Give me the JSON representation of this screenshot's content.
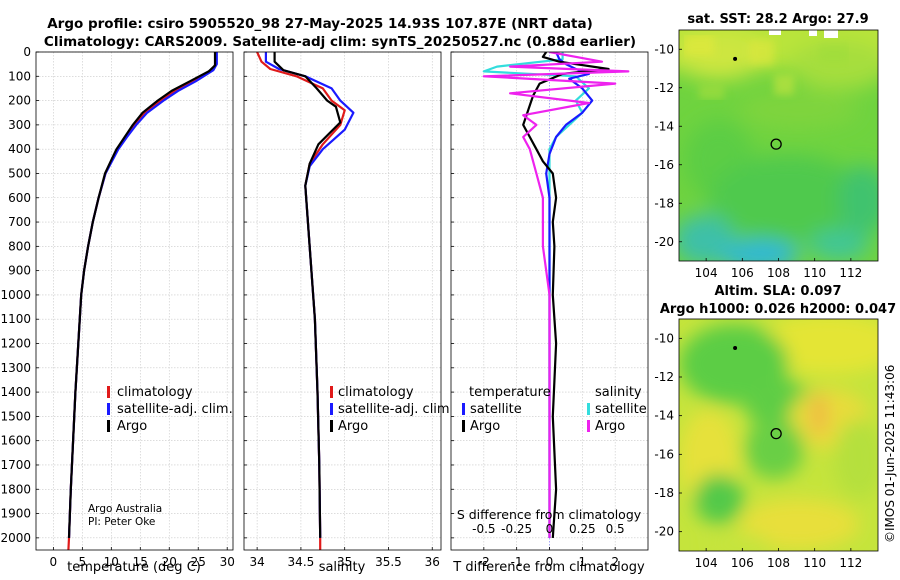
{
  "header": {
    "title_line1": "Argo profile: csiro 5905520_98 27-May-2025 14.93S 107.87E (NRT data)",
    "title_line2": "Climatology: CARS2009. Satellite-adj clim: synTS_20250527.nc (0.88d earlier)"
  },
  "colors": {
    "climatology": "#e01a1a",
    "satellite": "#1a1aff",
    "argo": "#000000",
    "sat_salinity": "#33dddd",
    "argo_salinity": "#ee22ee"
  },
  "chart_data": [
    {
      "type": "line",
      "name": "temperature",
      "xlabel": "temperature (deg C)",
      "xlim": [
        -3,
        31
      ],
      "ylim": [
        0,
        2050
      ],
      "xticks": [
        0,
        5,
        10,
        15,
        20,
        25,
        30
      ],
      "yticks": [
        0,
        100,
        200,
        300,
        400,
        500,
        600,
        700,
        800,
        900,
        1000,
        1100,
        1200,
        1300,
        1400,
        1500,
        1600,
        1700,
        1800,
        1900,
        2000
      ],
      "legend": [
        "climatology",
        "satellite-adj. clim.",
        "Argo"
      ],
      "annotation": [
        "Argo Australia",
        "PI: Peter Oke"
      ],
      "series": [
        {
          "name": "climatology",
          "points": [
            [
              28.0,
              0
            ],
            [
              28.0,
              50
            ],
            [
              27.3,
              75
            ],
            [
              24.2,
              120
            ],
            [
              21.0,
              160
            ],
            [
              18.5,
              200
            ],
            [
              15.8,
              250
            ],
            [
              14.0,
              300
            ],
            [
              12.5,
              350
            ],
            [
              11.0,
              400
            ],
            [
              10.0,
              450
            ],
            [
              9.0,
              500
            ],
            [
              7.8,
              600
            ],
            [
              6.8,
              700
            ],
            [
              6.0,
              800
            ],
            [
              5.3,
              900
            ],
            [
              4.8,
              1000
            ],
            [
              4.3,
              1200
            ],
            [
              3.8,
              1400
            ],
            [
              3.4,
              1600
            ],
            [
              3.0,
              1800
            ],
            [
              2.7,
              2000
            ],
            [
              2.6,
              2050
            ]
          ]
        },
        {
          "name": "satellite",
          "points": [
            [
              28.2,
              0
            ],
            [
              28.2,
              50
            ],
            [
              27.6,
              75
            ],
            [
              24.6,
              120
            ],
            [
              21.5,
              160
            ],
            [
              19.0,
              200
            ],
            [
              16.2,
              250
            ],
            [
              14.3,
              300
            ],
            [
              12.7,
              350
            ],
            [
              11.2,
              400
            ],
            [
              10.1,
              450
            ],
            [
              9.0,
              500
            ],
            [
              7.8,
              600
            ],
            [
              6.8,
              700
            ],
            [
              6.0,
              800
            ],
            [
              5.3,
              900
            ],
            [
              4.8,
              1000
            ],
            [
              4.3,
              1200
            ],
            [
              3.8,
              1400
            ],
            [
              3.4,
              1600
            ],
            [
              3.0,
              1800
            ],
            [
              2.7,
              2000
            ]
          ]
        },
        {
          "name": "argo",
          "points": [
            [
              27.9,
              0
            ],
            [
              27.9,
              55
            ],
            [
              26.8,
              80
            ],
            [
              23.6,
              120
            ],
            [
              20.4,
              160
            ],
            [
              18.0,
              200
            ],
            [
              15.4,
              250
            ],
            [
              13.7,
              300
            ],
            [
              12.3,
              350
            ],
            [
              10.9,
              400
            ],
            [
              9.9,
              450
            ],
            [
              8.9,
              500
            ],
            [
              7.8,
              600
            ],
            [
              6.8,
              700
            ],
            [
              6.0,
              800
            ],
            [
              5.3,
              900
            ],
            [
              4.8,
              1000
            ],
            [
              4.3,
              1200
            ],
            [
              3.8,
              1400
            ],
            [
              3.4,
              1600
            ],
            [
              3.0,
              1800
            ],
            [
              2.7,
              2000
            ]
          ]
        }
      ]
    },
    {
      "type": "line",
      "name": "salinity",
      "xlabel": "salinity",
      "xlim": [
        33.85,
        36.1
      ],
      "ylim": [
        0,
        2050
      ],
      "xticks": [
        34,
        34.5,
        35,
        35.5,
        36
      ],
      "legend": [
        "climatology",
        "satellite-adj. clim.",
        "Argo"
      ],
      "series": [
        {
          "name": "climatology",
          "points": [
            [
              34.0,
              0
            ],
            [
              34.05,
              40
            ],
            [
              34.15,
              70
            ],
            [
              34.45,
              100
            ],
            [
              34.75,
              150
            ],
            [
              34.85,
              200
            ],
            [
              35.0,
              240
            ],
            [
              34.95,
              300
            ],
            [
              34.75,
              380
            ],
            [
              34.6,
              460
            ],
            [
              34.55,
              550
            ],
            [
              34.58,
              700
            ],
            [
              34.62,
              900
            ],
            [
              34.66,
              1100
            ],
            [
              34.69,
              1400
            ],
            [
              34.71,
              1700
            ],
            [
              34.72,
              2000
            ],
            [
              34.72,
              2050
            ]
          ]
        },
        {
          "name": "satellite",
          "points": [
            [
              34.1,
              0
            ],
            [
              34.1,
              40
            ],
            [
              34.25,
              70
            ],
            [
              34.55,
              100
            ],
            [
              34.85,
              150
            ],
            [
              34.95,
              200
            ],
            [
              35.1,
              250
            ],
            [
              35.0,
              320
            ],
            [
              34.75,
              400
            ],
            [
              34.6,
              470
            ],
            [
              34.55,
              550
            ],
            [
              34.58,
              700
            ],
            [
              34.62,
              900
            ],
            [
              34.66,
              1100
            ],
            [
              34.69,
              1400
            ],
            [
              34.71,
              1700
            ],
            [
              34.72,
              2000
            ]
          ]
        },
        {
          "name": "argo",
          "points": [
            [
              34.2,
              0
            ],
            [
              34.2,
              40
            ],
            [
              34.3,
              75
            ],
            [
              34.55,
              100
            ],
            [
              34.68,
              150
            ],
            [
              34.8,
              200
            ],
            [
              34.9,
              225
            ],
            [
              34.95,
              290
            ],
            [
              34.7,
              380
            ],
            [
              34.6,
              460
            ],
            [
              34.55,
              550
            ],
            [
              34.58,
              700
            ],
            [
              34.62,
              900
            ],
            [
              34.66,
              1100
            ],
            [
              34.69,
              1400
            ],
            [
              34.71,
              1700
            ],
            [
              34.72,
              2000
            ]
          ]
        }
      ]
    },
    {
      "type": "line",
      "name": "differences",
      "xlabel": "T difference from climatology",
      "xlabel_top": "S difference from climatology",
      "xlim": [
        -3,
        3
      ],
      "ylim": [
        0,
        2050
      ],
      "xticks": [
        -2,
        -1,
        0,
        1,
        2
      ],
      "xticks_top": [
        -0.5,
        -0.25,
        0,
        0.25,
        0.5
      ],
      "legend_temperature": [
        "temperature",
        "satellite",
        "Argo"
      ],
      "legend_salinity": [
        "salinity",
        "satellite",
        "Argo"
      ],
      "series": [
        {
          "name": "T satellite",
          "points": [
            [
              0.2,
              0
            ],
            [
              0.3,
              30
            ],
            [
              0.5,
              50
            ],
            [
              0.8,
              70
            ],
            [
              1.2,
              90
            ],
            [
              0.6,
              110
            ],
            [
              1.0,
              150
            ],
            [
              1.3,
              200
            ],
            [
              1.0,
              250
            ],
            [
              0.5,
              300
            ],
            [
              0.2,
              350
            ],
            [
              0.0,
              420
            ],
            [
              -0.1,
              500
            ],
            [
              0.0,
              600
            ],
            [
              0.0,
              1000
            ],
            [
              0.0,
              2000
            ]
          ]
        },
        {
          "name": "T argo",
          "points": [
            [
              -0.1,
              0
            ],
            [
              -0.2,
              20
            ],
            [
              0.3,
              40
            ],
            [
              1.8,
              70
            ],
            [
              0.4,
              90
            ],
            [
              -0.3,
              130
            ],
            [
              -0.5,
              180
            ],
            [
              -0.6,
              220
            ],
            [
              -0.7,
              260
            ],
            [
              -0.8,
              300
            ],
            [
              -0.6,
              350
            ],
            [
              -0.4,
              400
            ],
            [
              -0.2,
              450
            ],
            [
              0.1,
              500
            ],
            [
              0.2,
              600
            ],
            [
              0.1,
              700
            ],
            [
              0.15,
              800
            ],
            [
              0.1,
              1000
            ],
            [
              0.2,
              1200
            ],
            [
              0.1,
              1500
            ],
            [
              0.2,
              1800
            ],
            [
              0.1,
              2000
            ]
          ]
        },
        {
          "name": "S satellite",
          "points": [
            [
              0.1,
              0
            ],
            [
              0.1,
              30
            ],
            [
              -0.4,
              60
            ],
            [
              -0.5,
              80
            ],
            [
              0.2,
              100
            ],
            [
              0.3,
              150
            ],
            [
              0.2,
              200
            ],
            [
              0.25,
              250
            ],
            [
              0.15,
              300
            ],
            [
              0.05,
              350
            ],
            [
              0.0,
              400
            ],
            [
              0.0,
              500
            ],
            [
              0.0,
              2000
            ]
          ]
        },
        {
          "name": "S argo",
          "points": [
            [
              0.0,
              0
            ],
            [
              0.4,
              40
            ],
            [
              -0.3,
              60
            ],
            [
              0.6,
              80
            ],
            [
              -0.5,
              100
            ],
            [
              0.5,
              130
            ],
            [
              -0.3,
              170
            ],
            [
              0.3,
              210
            ],
            [
              -0.2,
              260
            ],
            [
              -0.1,
              300
            ],
            [
              -0.2,
              350
            ],
            [
              -0.15,
              400
            ],
            [
              -0.1,
              500
            ],
            [
              -0.05,
              600
            ],
            [
              -0.05,
              800
            ],
            [
              0.0,
              1000
            ],
            [
              0.0,
              2000
            ]
          ]
        }
      ]
    },
    {
      "type": "heatmap",
      "name": "sst-map",
      "title": "sat. SST: 28.2  Argo: 27.9",
      "xlim": [
        102.5,
        113.5
      ],
      "ylim": [
        -21,
        -9
      ],
      "xticks": [
        104,
        106,
        108,
        110,
        112
      ],
      "yticks": [
        -10,
        -12,
        -14,
        -16,
        -18,
        -20
      ],
      "argo_position": [
        107.87,
        -14.93
      ],
      "marker": [
        105.6,
        -10.5
      ]
    },
    {
      "type": "heatmap",
      "name": "sla-map",
      "title": "Altim. SLA: 0.097",
      "subtitle": "Argo h1000: 0.026 h2000: 0.047",
      "xlim": [
        102.5,
        113.5
      ],
      "ylim": [
        -21,
        -9
      ],
      "xticks": [
        104,
        106,
        108,
        110,
        112
      ],
      "yticks": [
        -10,
        -12,
        -14,
        -16,
        -18,
        -20
      ],
      "argo_position": [
        107.87,
        -14.93
      ],
      "marker": [
        105.6,
        -10.5
      ]
    }
  ],
  "footer": {
    "imos_stamp": "©IMOS 01-Jun-2025 11:43:06"
  }
}
